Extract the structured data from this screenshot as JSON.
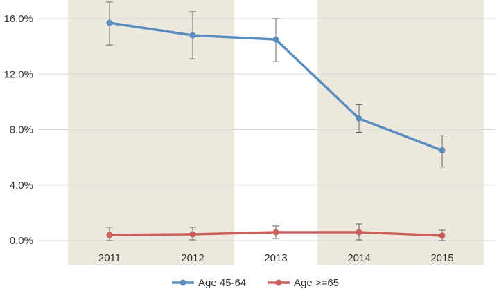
{
  "chart_data": {
    "type": "line",
    "categories": [
      "2011",
      "2012",
      "2013",
      "2014",
      "2015"
    ],
    "y_tick_labels": [
      "0.0%",
      "4.0%",
      "8.0%",
      "12.0%",
      "16.0%"
    ],
    "y_tick_values": [
      0,
      4,
      8,
      12,
      16
    ],
    "ylim": [
      0,
      16
    ],
    "grid": "horizontal",
    "legend_position": "bottom",
    "shaded_categories": [
      "2011",
      "2012",
      "2014",
      "2015"
    ],
    "shade_color": "#ede8dd",
    "series": [
      {
        "name": "Age 45-64",
        "color": "#5b8dbf",
        "values": [
          15.7,
          14.8,
          14.5,
          8.8,
          6.5
        ],
        "error_low": [
          14.1,
          13.1,
          12.9,
          7.8,
          5.3
        ],
        "error_high": [
          17.2,
          16.5,
          16.0,
          9.8,
          7.6
        ]
      },
      {
        "name": "Age >=65",
        "color": "#c9605b",
        "values": [
          0.4,
          0.45,
          0.6,
          0.6,
          0.35
        ],
        "error_low": [
          0.0,
          0.05,
          0.15,
          0.05,
          0.0
        ],
        "error_high": [
          0.95,
          0.95,
          1.05,
          1.2,
          0.75
        ]
      }
    ]
  }
}
